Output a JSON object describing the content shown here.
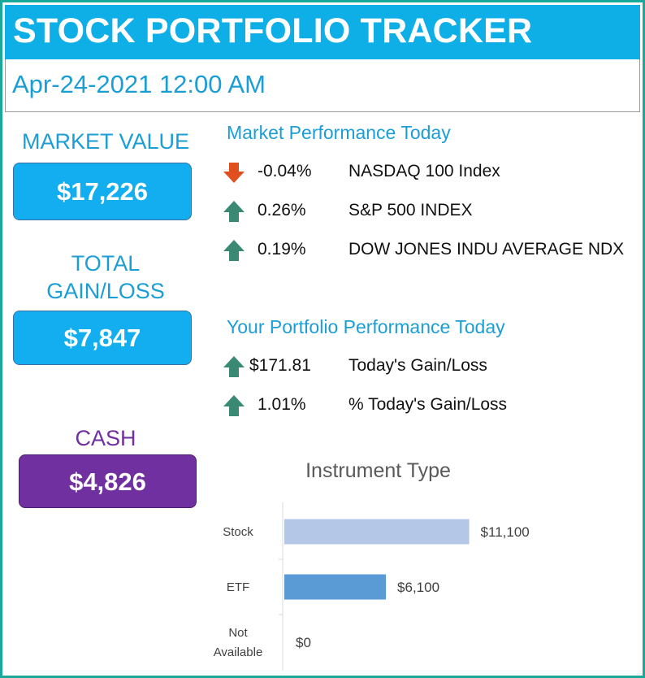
{
  "header": {
    "title": "STOCK PORTFOLIO TRACKER",
    "datetime": "Apr-24-2021 12:00 AM"
  },
  "summary": {
    "market_value": {
      "label": "MARKET VALUE",
      "value": "$17,226"
    },
    "total_gain_loss": {
      "label": "TOTAL\nGAIN/LOSS",
      "value": "$7,847"
    },
    "cash": {
      "label": "CASH",
      "value": "$4,826"
    }
  },
  "market_performance": {
    "title": "Market Performance Today",
    "rows": [
      {
        "direction": "down",
        "icon": "arrow-down-icon",
        "value": "-0.04%",
        "label": "NASDAQ 100 Index"
      },
      {
        "direction": "up",
        "icon": "arrow-up-icon",
        "value": "0.26%",
        "label": "S&P 500 INDEX"
      },
      {
        "direction": "up",
        "icon": "arrow-up-icon",
        "value": "0.19%",
        "label": "DOW JONES INDU AVERAGE NDX"
      }
    ]
  },
  "portfolio_performance": {
    "title": "Your Portfolio Performance Today",
    "rows": [
      {
        "direction": "up",
        "icon": "arrow-up-icon",
        "value": "$171.81",
        "label": "Today's Gain/Loss"
      },
      {
        "direction": "up",
        "icon": "arrow-up-icon",
        "value": "1.01%",
        "label": "% Today's Gain/Loss"
      }
    ]
  },
  "colors": {
    "title_bar": "#0eaee6",
    "accent_text": "#1b9ed6",
    "value_box_blue": "#12aef0",
    "cash_box": "#7030a0",
    "cash_label": "#7030a0",
    "arrow_up": "#3a8a73",
    "arrow_down": "#e0501e",
    "frame_border": "#1aa89a"
  },
  "chart_data": {
    "type": "bar",
    "orientation": "horizontal",
    "title": "Instrument Type",
    "categories": [
      "Stock",
      "ETF",
      "Not\nAvailable"
    ],
    "values": [
      11100,
      6100,
      0
    ],
    "data_labels": [
      "$11,100",
      "$6,100",
      "$0"
    ],
    "bar_colors": [
      "#b4c7e7",
      "#5b9bd5",
      "#5b9bd5"
    ],
    "xlim": [
      0,
      12000
    ],
    "grid": false,
    "legend": "none"
  }
}
